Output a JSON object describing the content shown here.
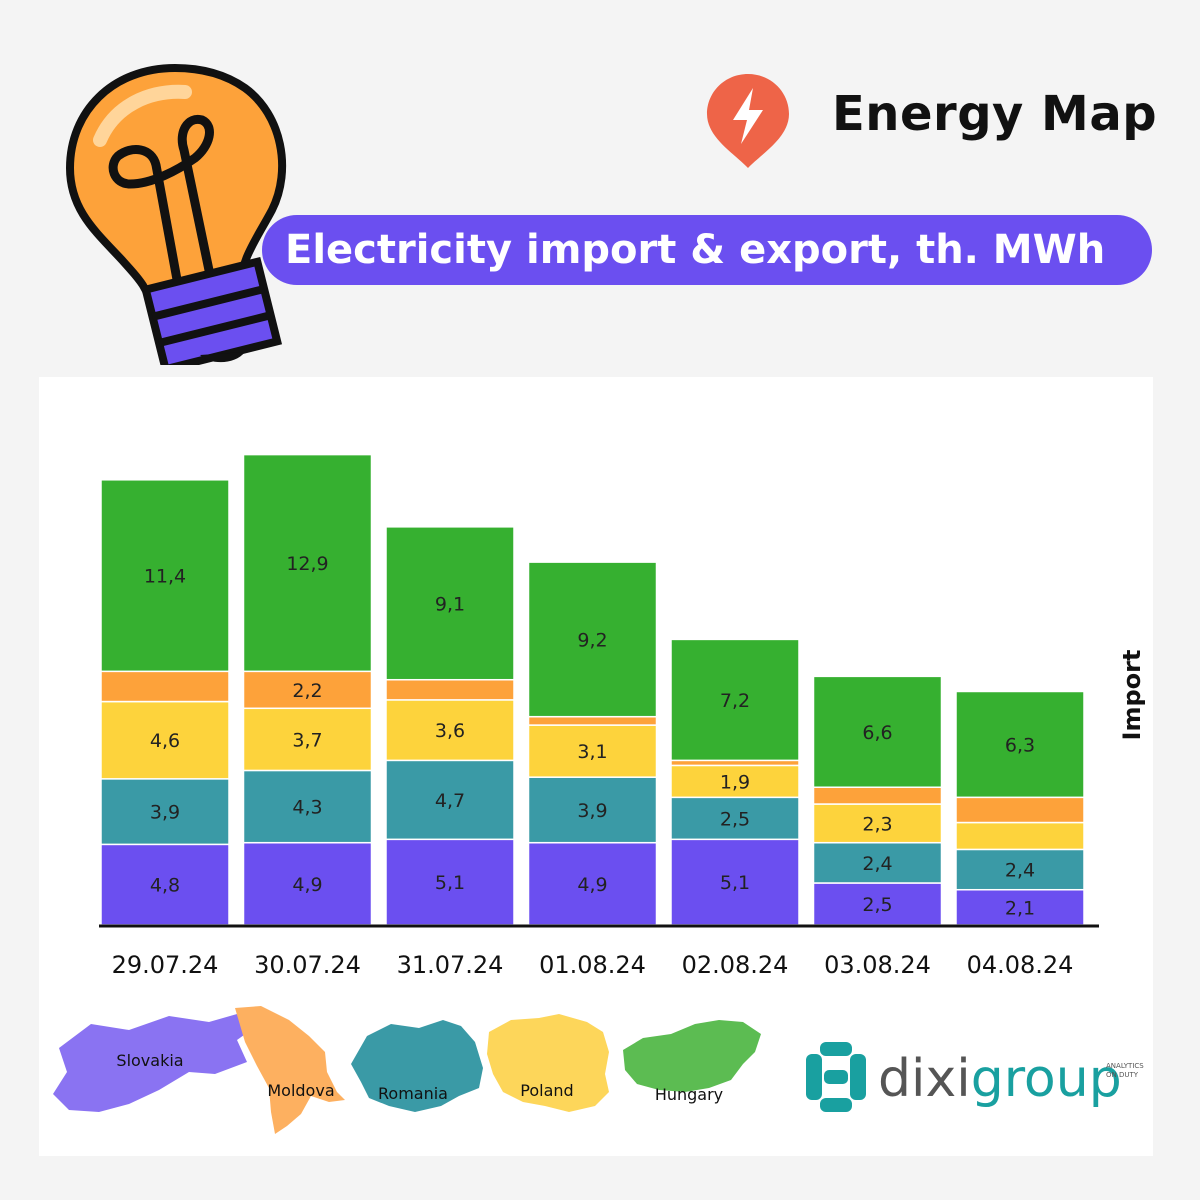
{
  "header": {
    "brand": "Energy Map",
    "title": "Electricity import & export, th. MWh"
  },
  "colors": {
    "accent": "#6b4ff0",
    "Slovakia": "#6b4ff0",
    "Romania": "#3a9aa6",
    "Poland": "#fdd33c",
    "Moldova": "#fda23a",
    "Hungary": "#36b030",
    "pin": "#ee6448",
    "bulb": "#fda23a"
  },
  "chart_data": {
    "type": "bar",
    "stacked": true,
    "ylabel": "Import",
    "categories": [
      "29.07.24",
      "30.07.24",
      "31.07.24",
      "01.08.24",
      "02.08.24",
      "03.08.24",
      "04.08.24"
    ],
    "series": [
      {
        "name": "Slovakia",
        "values": [
          4.8,
          4.9,
          5.1,
          4.9,
          5.1,
          2.5,
          2.1
        ],
        "labels": [
          "4,8",
          "4,9",
          "5,1",
          "4,9",
          "5,1",
          "2,5",
          "2,1"
        ]
      },
      {
        "name": "Romania",
        "values": [
          3.9,
          4.3,
          4.7,
          3.9,
          2.5,
          2.4,
          2.4
        ],
        "labels": [
          "3,9",
          "4,3",
          "4,7",
          "3,9",
          "2,5",
          "2,4",
          "2,4"
        ]
      },
      {
        "name": "Poland",
        "values": [
          4.6,
          3.7,
          3.6,
          3.1,
          1.9,
          2.3,
          1.6
        ],
        "labels": [
          "4,6",
          "3,7",
          "3,6",
          "3,1",
          "1,9",
          "2,3",
          ""
        ]
      },
      {
        "name": "Moldova",
        "values": [
          1.8,
          2.2,
          1.2,
          0.5,
          0.3,
          1.0,
          1.5
        ],
        "labels": [
          "",
          "2,2",
          "",
          "",
          "",
          "",
          ""
        ]
      },
      {
        "name": "Hungary",
        "values": [
          11.4,
          12.9,
          9.1,
          9.2,
          7.2,
          6.6,
          6.3
        ],
        "labels": [
          "11,4",
          "12,9",
          "9,1",
          "9,2",
          "7,2",
          "6,6",
          "6,3"
        ]
      }
    ]
  },
  "legend": [
    {
      "label": "Slovakia"
    },
    {
      "label": "Moldova"
    },
    {
      "label": "Romania"
    },
    {
      "label": "Poland"
    },
    {
      "label": "Hungary"
    }
  ],
  "footer": {
    "logo_dixi": "dixi",
    "logo_group": "group",
    "tagline_1": "ANALYTICS",
    "tagline_2": "ON DUTY"
  }
}
